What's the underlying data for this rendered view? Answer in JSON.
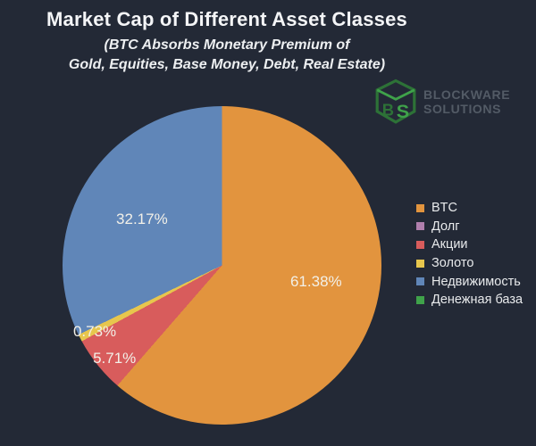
{
  "header": {
    "title": "Market Cap of Different Asset Classes",
    "subtitle_line1": "(BTC Absorbs Monetary Premium of",
    "subtitle_line2": "Gold, Equities, Base Money, Debt, Real Estate)"
  },
  "logo": {
    "brand_line1": "BLOCKWARE",
    "brand_line2": "SOLUTIONS",
    "monogram_b": "B",
    "monogram_s": "S",
    "cube_dark_green": "#2d7237",
    "cube_light_green": "#3fa24a",
    "text_color": "#535b66"
  },
  "colors": {
    "background": "#232936",
    "slice_label_text": "#f2f0e8"
  },
  "chart_data": {
    "type": "pie",
    "title": "Market Cap of Different Asset Classes",
    "subtitle": "(BTC Absorbs Monetary Premium of Gold, Equities, Base Money, Debt, Real Estate)",
    "legend_position": "right",
    "start_angle_deg": 0,
    "direction": "clockwise",
    "slices": [
      {
        "label": "BTC",
        "value": 61.38,
        "display": "61.38%",
        "color": "#e2943e"
      },
      {
        "label": "Долг",
        "value": 0,
        "display": "",
        "color": "#b07fad"
      },
      {
        "label": "Акции",
        "value": 5.71,
        "display": "5.71%",
        "color": "#d85c5c"
      },
      {
        "label": "Золото",
        "value": 0.73,
        "display": "0.73%",
        "color": "#e7c64d"
      },
      {
        "label": "Недвижимость",
        "value": 32.17,
        "display": "32.17%",
        "color": "#6086b8"
      },
      {
        "label": "Денежная база",
        "value": 0,
        "display": "",
        "color": "#3fa24a"
      }
    ]
  }
}
